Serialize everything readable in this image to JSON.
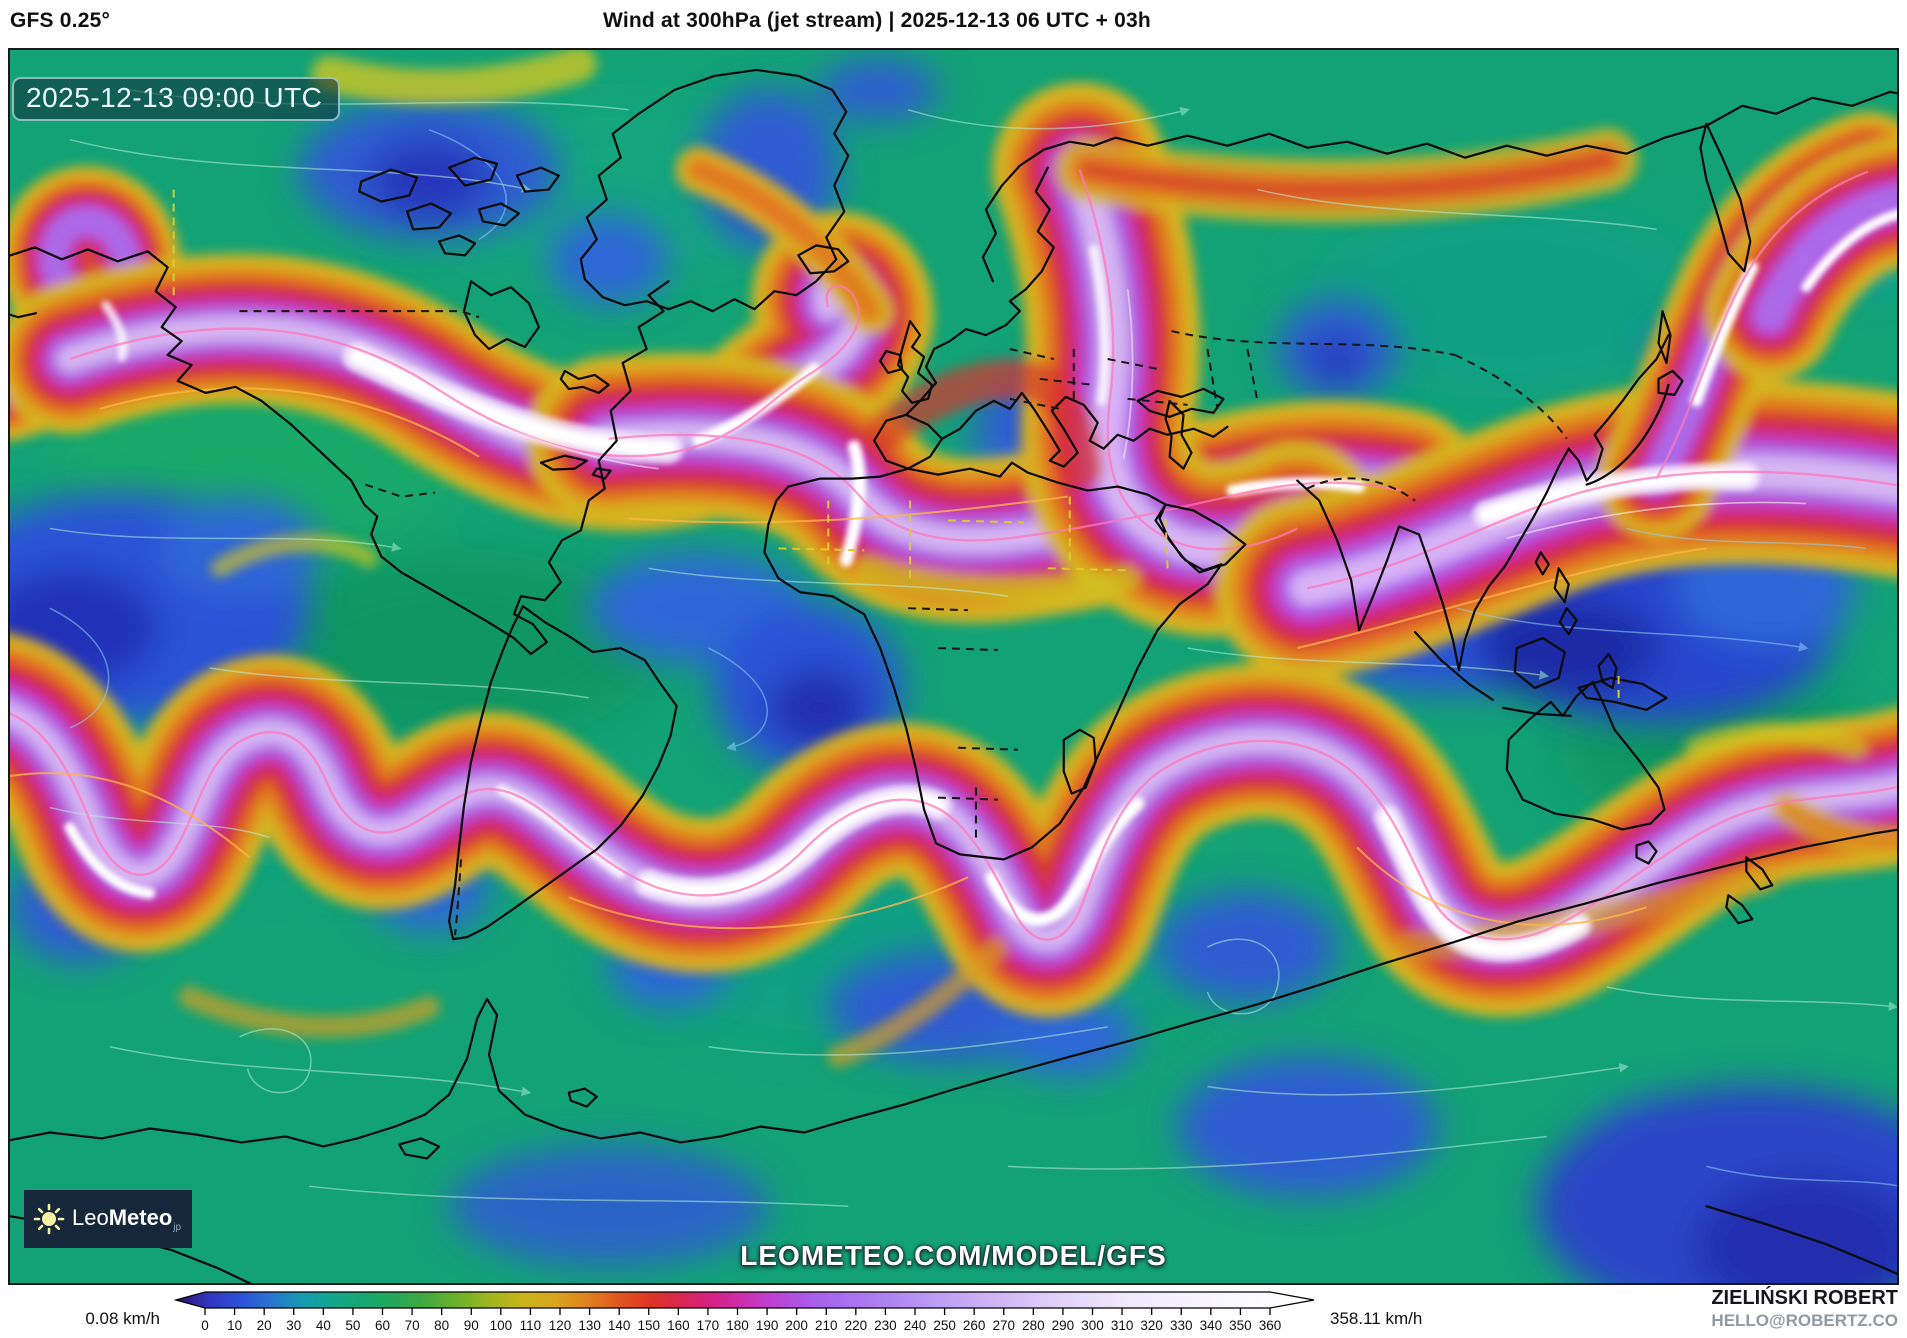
{
  "header": {
    "model_label": "GFS 0.25°",
    "title": "Wind at 300hPa (jet stream) | 2025-12-13 06 UTC + 03h"
  },
  "map": {
    "timestamp": "2025-12-13 09:00 UTC",
    "watermark": "LEOMETEO.COM/MODEL/GFS",
    "logo": {
      "prefix": "Leo",
      "name_bold": "Meteo",
      "domain": "jp"
    }
  },
  "legend": {
    "min_label": "0.08 km/h",
    "max_label": "358.11 km/h",
    "unit": "km/h",
    "ticks": [
      0,
      10,
      20,
      30,
      40,
      50,
      60,
      70,
      80,
      90,
      100,
      110,
      120,
      130,
      140,
      150,
      160,
      170,
      180,
      190,
      200,
      210,
      220,
      230,
      240,
      250,
      260,
      270,
      280,
      290,
      300,
      310,
      320,
      330,
      340,
      350,
      360
    ],
    "gradient": [
      {
        "v": 0,
        "c": "#2f1070"
      },
      {
        "v": 10,
        "c": "#3333bb"
      },
      {
        "v": 20,
        "c": "#2b50d8"
      },
      {
        "v": 30,
        "c": "#2a74cf"
      },
      {
        "v": 40,
        "c": "#149bb0"
      },
      {
        "v": 50,
        "c": "#12a88c"
      },
      {
        "v": 60,
        "c": "#16a871"
      },
      {
        "v": 70,
        "c": "#27a757"
      },
      {
        "v": 80,
        "c": "#47aa3b"
      },
      {
        "v": 90,
        "c": "#72b229"
      },
      {
        "v": 100,
        "c": "#a3b61e"
      },
      {
        "v": 110,
        "c": "#cbb51a"
      },
      {
        "v": 120,
        "c": "#d9a51e"
      },
      {
        "v": 130,
        "c": "#e08220"
      },
      {
        "v": 140,
        "c": "#e0571f"
      },
      {
        "v": 150,
        "c": "#dd3524"
      },
      {
        "v": 160,
        "c": "#d92553"
      },
      {
        "v": 170,
        "c": "#d62186"
      },
      {
        "v": 180,
        "c": "#cb2fb2"
      },
      {
        "v": 190,
        "c": "#bb45d6"
      },
      {
        "v": 200,
        "c": "#ab5ae8"
      },
      {
        "v": 210,
        "c": "#a66df0"
      },
      {
        "v": 225,
        "c": "#ad84f2"
      },
      {
        "v": 240,
        "c": "#bb9df4"
      },
      {
        "v": 260,
        "c": "#cfb6f6"
      },
      {
        "v": 280,
        "c": "#e2d3f8"
      },
      {
        "v": 300,
        "c": "#efe8fb"
      },
      {
        "v": 330,
        "c": "#f9f7fe"
      },
      {
        "v": 360,
        "c": "#ffffff"
      }
    ]
  },
  "credits": {
    "author": "ZIELIŃSKI ROBERT",
    "contact": "HELLO@ROBERTZ.CO"
  },
  "colors": {
    "background_green": "#13a276",
    "low_wind_blue": "#2b52d6",
    "jet_yellow": "#dfb41c",
    "jet_orange": "#ec7a1c",
    "jet_red": "#e03526",
    "jet_crimson": "#da2470",
    "jet_magenta": "#c937c4",
    "jet_violet": "#b468ee",
    "jet_core_white": "#ffffff",
    "coastline": "#0a0a0a",
    "timestamp_bg": "rgba(13,45,60,0.58)",
    "logo_bg": "#17273b"
  }
}
